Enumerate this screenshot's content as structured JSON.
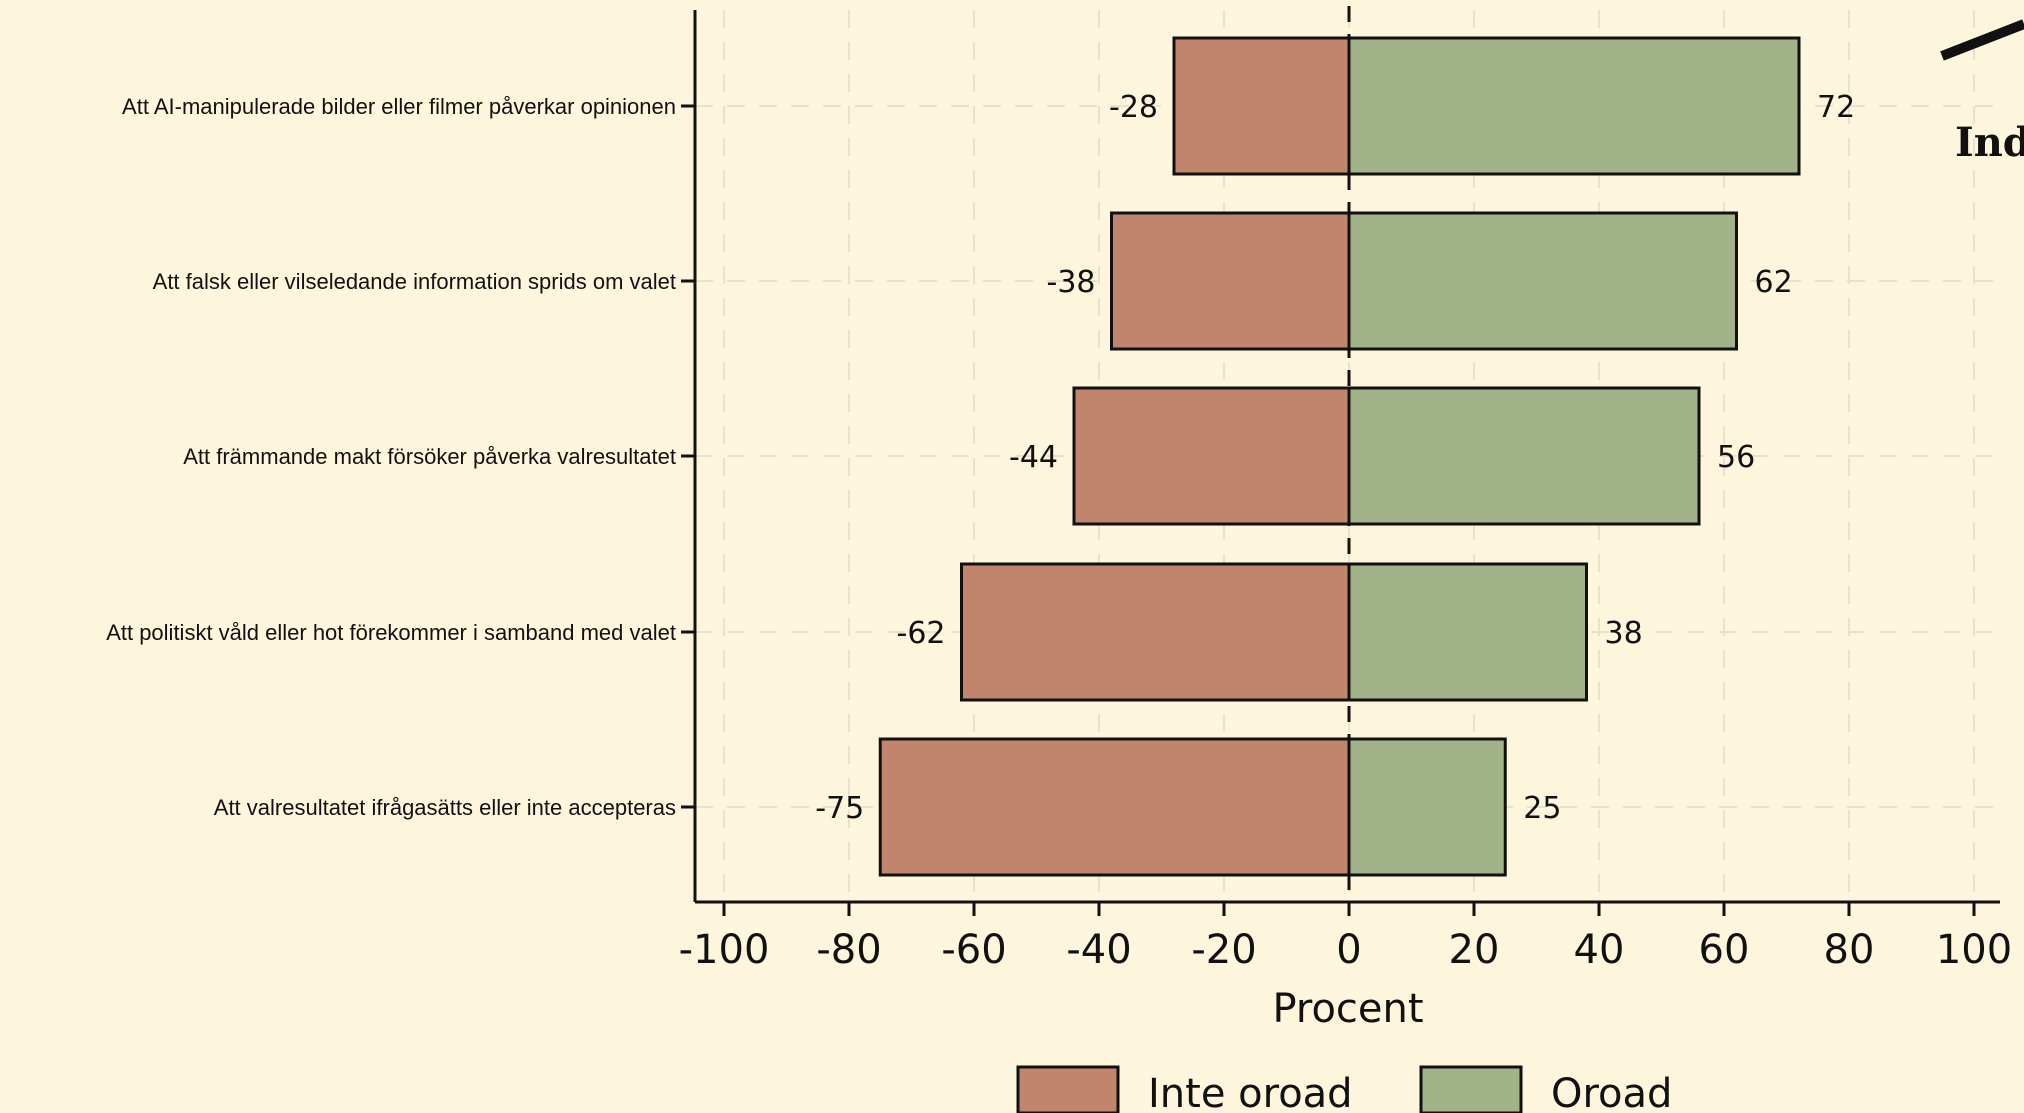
{
  "chart_data": {
    "type": "bar",
    "orientation": "horizontal",
    "stacked": "diverging",
    "categories": [
      "Att AI-manipulerade bilder eller filmer påverkar opinionen",
      "Att falsk eller vilseledande information sprids om valet",
      "Att främmande makt försöker påverka valresultatet",
      "Att politiskt våld eller hot förekommer i samband med valet",
      "Att valresultatet ifrågasätts eller inte accepteras"
    ],
    "series": [
      {
        "name": "Inte oroad",
        "values": [
          -28,
          -38,
          -44,
          -62,
          -75
        ],
        "color": "#c1846d"
      },
      {
        "name": "Oroad",
        "values": [
          72,
          62,
          56,
          38,
          25
        ],
        "color": "#a2b289"
      }
    ],
    "xlabel": "Procent",
    "xlim": [
      -104,
      105
    ],
    "xticks": [
      -100,
      -80,
      -60,
      -40,
      -20,
      0,
      20,
      40,
      60,
      80,
      100
    ],
    "grid": true,
    "legend_position": "bottom",
    "corner_text": "Ind"
  }
}
